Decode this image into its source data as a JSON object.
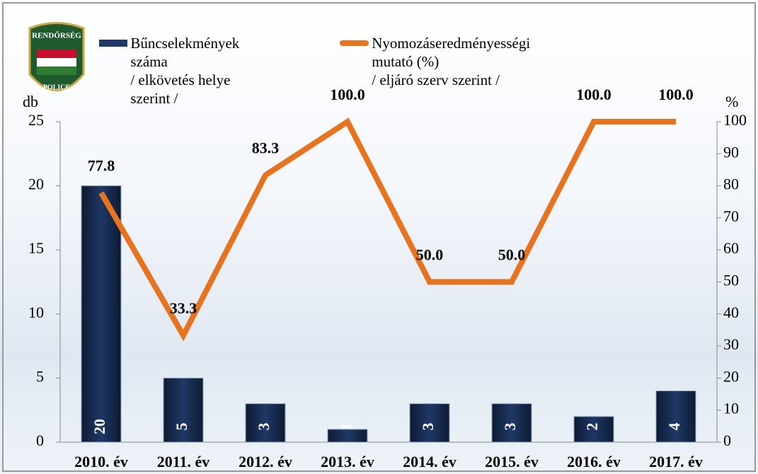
{
  "logo": {
    "top": "RENDŐRSÉG",
    "bottom": "POLICE"
  },
  "chart_data": {
    "type": "bar-line",
    "y_label": "db",
    "y2_label": "%",
    "categories": [
      "2010. év",
      "2011. év",
      "2012. év",
      "2013. év",
      "2014. év",
      "2015. év",
      "2016. év",
      "2017. év"
    ],
    "series": [
      {
        "name": "Bűncselekmények száma\n/ elkövetés helye szerint /",
        "type": "bar",
        "color": "#1f3864",
        "values": [
          20,
          5,
          3,
          1,
          3,
          3,
          2,
          4
        ]
      },
      {
        "name": "Nyomozáseredményességi mutató (%)\n/ eljáró szerv szerint /",
        "type": "line",
        "color": "#e8731e",
        "axis": "y2",
        "values": [
          77.8,
          33.3,
          83.3,
          100,
          50,
          50,
          100,
          100
        ],
        "value_labels": [
          "77.8",
          "33.3",
          "83.3",
          "100.0",
          "50.0",
          "50.0",
          "100.0",
          "100.0"
        ]
      }
    ],
    "ylim": [
      0,
      25
    ],
    "yticks": [
      0,
      5,
      10,
      15,
      20,
      25
    ],
    "y2lim": [
      0,
      100
    ],
    "y2ticks": [
      0,
      10,
      20,
      30,
      40,
      50,
      60,
      70,
      80,
      90,
      100
    ]
  }
}
